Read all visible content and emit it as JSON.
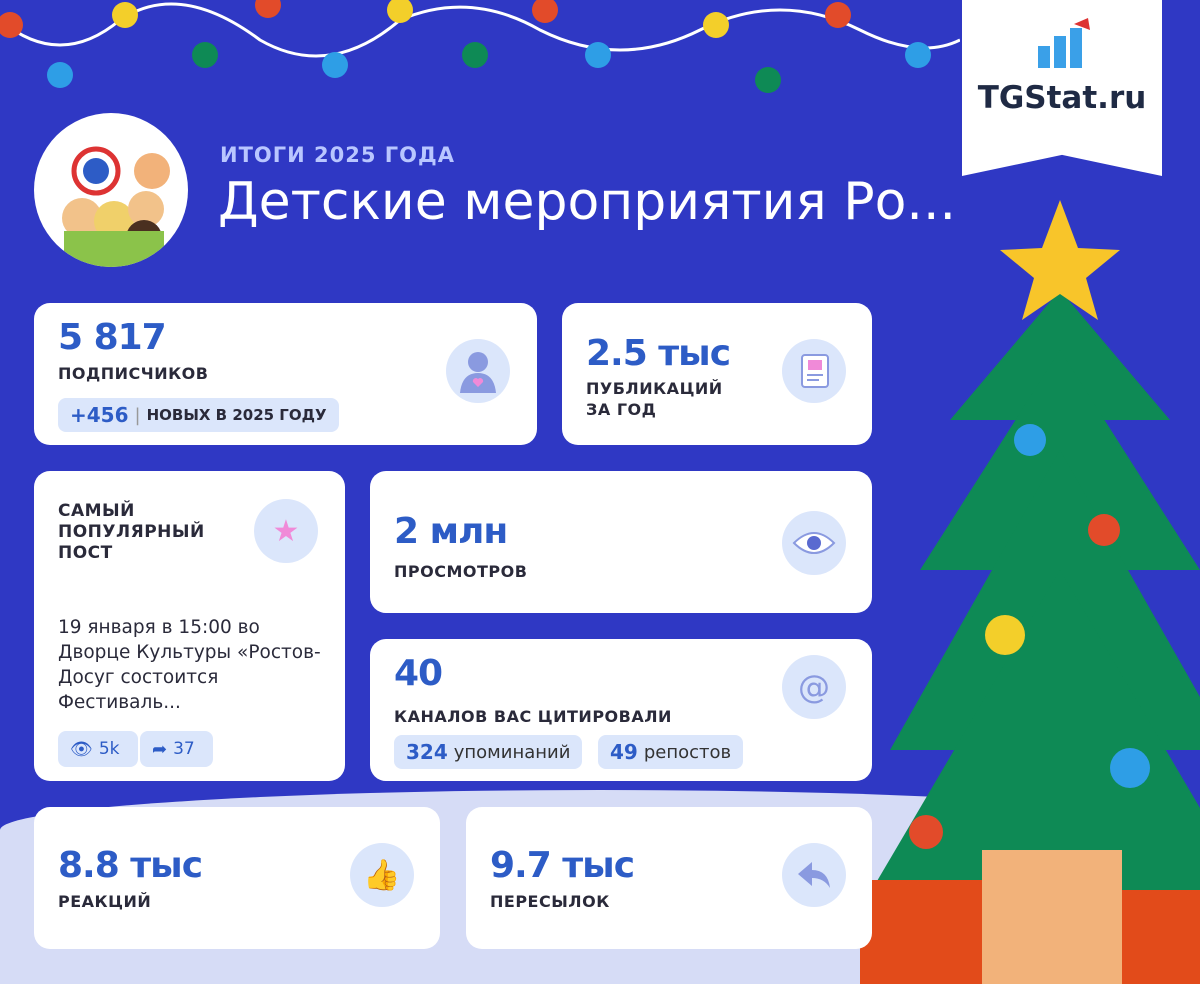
{
  "header": {
    "subtitle": "ИТОГИ 2025 ГОДА",
    "title": "Детские мероприятия Ро..."
  },
  "brand": {
    "name": "TGStat.ru"
  },
  "colors": {
    "background": "#2f38c4",
    "accent": "#2d5cc6",
    "pill": "#dbe6fb",
    "tree": "#0e8a55"
  },
  "subscribers": {
    "value": "5 817",
    "label": "ПОДПИСЧИКОВ",
    "delta": "+456",
    "delta_label": "НОВЫХ В 2025 ГОДУ",
    "icon": "user-heart-icon"
  },
  "posts": {
    "value": "2.5 тыс",
    "label": "ПУБЛИКАЦИЙ ЗА ГОД",
    "icon": "document-image-icon"
  },
  "popular_post": {
    "label": "САМЫЙ ПОПУЛЯРНЫЙ ПОСТ",
    "text": "19 января в 15:00 во Дворце Культуры «Ростов-Досуг состоится Фестиваль...",
    "views": "5k",
    "shares": "37",
    "icon": "star-icon"
  },
  "views": {
    "value": "2 млн",
    "label": "ПРОСМОТРОВ",
    "icon": "eye-icon"
  },
  "citations": {
    "value": "40",
    "label": "КАНАЛОВ ВАС ЦИТИРОВАЛИ",
    "mentions": "324",
    "mentions_label": "упоминаний",
    "reposts": "49",
    "reposts_label": "репостов",
    "icon": "at-icon"
  },
  "reactions": {
    "value": "8.8 тыс",
    "label": "РЕАКЦИЙ",
    "icon": "thumbs-up-icon"
  },
  "forwards": {
    "value": "9.7 тыс",
    "label": "ПЕРЕСЫЛОК",
    "icon": "forward-arrow-icon"
  }
}
